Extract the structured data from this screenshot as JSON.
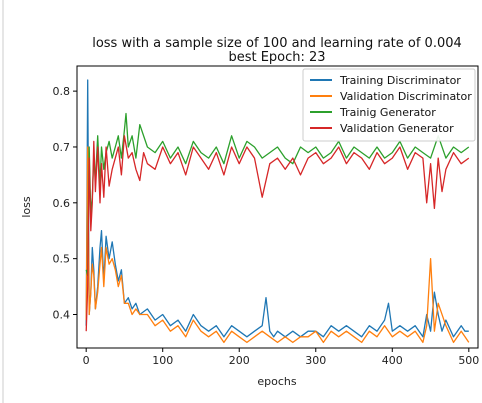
{
  "chart_data": {
    "type": "line",
    "title": "loss with a sample size of 100 and learning rate of 0.004",
    "subtitle": "best Epoch: 23",
    "xlabel": "epochs",
    "ylabel": "loss",
    "xlim": [
      -12,
      512
    ],
    "ylim": [
      0.34,
      0.845
    ],
    "xticks": [
      0,
      100,
      200,
      300,
      400,
      500
    ],
    "yticks": [
      0.4,
      0.5,
      0.6,
      0.7,
      0.8
    ],
    "legend_position": "top-right",
    "grid": false,
    "series": [
      {
        "name": "Training Discriminator",
        "color": "#1f77b4",
        "x": [
          0,
          2,
          4,
          6,
          8,
          10,
          12,
          15,
          18,
          20,
          23,
          26,
          30,
          34,
          38,
          42,
          46,
          50,
          55,
          60,
          65,
          70,
          80,
          90,
          100,
          110,
          120,
          130,
          140,
          150,
          160,
          170,
          180,
          190,
          200,
          210,
          220,
          230,
          235,
          240,
          245,
          250,
          260,
          270,
          280,
          290,
          300,
          310,
          320,
          330,
          340,
          350,
          360,
          370,
          380,
          390,
          395,
          400,
          410,
          420,
          430,
          440,
          445,
          450,
          455,
          460,
          465,
          470,
          480,
          490,
          495,
          500
        ],
        "values": [
          0.38,
          0.82,
          0.4,
          0.44,
          0.52,
          0.48,
          0.41,
          0.45,
          0.52,
          0.55,
          0.46,
          0.54,
          0.5,
          0.53,
          0.49,
          0.46,
          0.48,
          0.42,
          0.43,
          0.41,
          0.42,
          0.4,
          0.41,
          0.39,
          0.4,
          0.38,
          0.39,
          0.37,
          0.4,
          0.38,
          0.37,
          0.38,
          0.36,
          0.38,
          0.37,
          0.36,
          0.37,
          0.38,
          0.43,
          0.37,
          0.36,
          0.37,
          0.36,
          0.37,
          0.36,
          0.37,
          0.37,
          0.36,
          0.38,
          0.37,
          0.38,
          0.37,
          0.36,
          0.38,
          0.37,
          0.39,
          0.42,
          0.37,
          0.38,
          0.37,
          0.38,
          0.36,
          0.4,
          0.37,
          0.44,
          0.4,
          0.37,
          0.39,
          0.36,
          0.38,
          0.37,
          0.37
        ]
      },
      {
        "name": "Validation Discriminator",
        "color": "#ff7f0e",
        "x": [
          0,
          2,
          4,
          6,
          8,
          10,
          12,
          15,
          18,
          20,
          23,
          26,
          30,
          34,
          38,
          42,
          46,
          50,
          55,
          60,
          65,
          70,
          80,
          90,
          100,
          110,
          120,
          130,
          140,
          150,
          160,
          170,
          180,
          190,
          200,
          210,
          220,
          230,
          240,
          250,
          260,
          270,
          280,
          290,
          300,
          310,
          320,
          330,
          340,
          350,
          360,
          370,
          380,
          390,
          400,
          410,
          420,
          430,
          440,
          445,
          450,
          455,
          460,
          470,
          480,
          490,
          495,
          500
        ],
        "values": [
          0.39,
          0.7,
          0.4,
          0.44,
          0.49,
          0.47,
          0.41,
          0.44,
          0.49,
          0.52,
          0.45,
          0.52,
          0.49,
          0.5,
          0.48,
          0.45,
          0.47,
          0.42,
          0.42,
          0.4,
          0.41,
          0.4,
          0.4,
          0.38,
          0.39,
          0.37,
          0.38,
          0.36,
          0.39,
          0.37,
          0.36,
          0.37,
          0.35,
          0.37,
          0.36,
          0.35,
          0.36,
          0.37,
          0.36,
          0.35,
          0.36,
          0.35,
          0.36,
          0.36,
          0.37,
          0.35,
          0.37,
          0.36,
          0.37,
          0.36,
          0.35,
          0.37,
          0.36,
          0.38,
          0.36,
          0.37,
          0.36,
          0.37,
          0.35,
          0.38,
          0.5,
          0.37,
          0.42,
          0.38,
          0.35,
          0.37,
          0.36,
          0.35
        ]
      },
      {
        "name": "Trainig Generator",
        "color": "#2ca02c",
        "x": [
          0,
          2,
          4,
          6,
          8,
          10,
          12,
          15,
          18,
          20,
          23,
          26,
          30,
          34,
          38,
          42,
          46,
          50,
          52,
          55,
          60,
          65,
          70,
          80,
          90,
          100,
          110,
          120,
          130,
          140,
          150,
          160,
          170,
          180,
          190,
          200,
          210,
          220,
          230,
          240,
          250,
          260,
          270,
          280,
          290,
          300,
          310,
          320,
          330,
          340,
          350,
          360,
          370,
          380,
          390,
          400,
          410,
          420,
          430,
          440,
          450,
          460,
          470,
          480,
          490,
          500
        ],
        "values": [
          0.48,
          0.47,
          0.7,
          0.58,
          0.61,
          0.68,
          0.64,
          0.72,
          0.63,
          0.7,
          0.66,
          0.69,
          0.71,
          0.68,
          0.7,
          0.72,
          0.68,
          0.73,
          0.76,
          0.7,
          0.72,
          0.68,
          0.74,
          0.7,
          0.69,
          0.71,
          0.68,
          0.7,
          0.67,
          0.71,
          0.69,
          0.68,
          0.7,
          0.67,
          0.72,
          0.68,
          0.71,
          0.7,
          0.68,
          0.69,
          0.7,
          0.68,
          0.67,
          0.7,
          0.69,
          0.7,
          0.68,
          0.69,
          0.71,
          0.68,
          0.7,
          0.69,
          0.68,
          0.7,
          0.68,
          0.69,
          0.71,
          0.68,
          0.7,
          0.69,
          0.68,
          0.72,
          0.68,
          0.7,
          0.69,
          0.7
        ]
      },
      {
        "name": "Validation Generator",
        "color": "#d62728",
        "x": [
          0,
          2,
          4,
          6,
          8,
          10,
          12,
          15,
          18,
          20,
          23,
          26,
          30,
          34,
          38,
          42,
          46,
          50,
          55,
          60,
          65,
          70,
          75,
          80,
          90,
          100,
          110,
          120,
          130,
          140,
          150,
          160,
          170,
          180,
          190,
          200,
          210,
          220,
          230,
          240,
          250,
          260,
          270,
          280,
          290,
          300,
          310,
          320,
          330,
          340,
          350,
          360,
          370,
          380,
          390,
          400,
          410,
          420,
          430,
          440,
          445,
          450,
          455,
          460,
          465,
          470,
          480,
          490,
          500
        ],
        "values": [
          0.37,
          0.45,
          0.68,
          0.55,
          0.6,
          0.71,
          0.62,
          0.7,
          0.6,
          0.67,
          0.61,
          0.7,
          0.63,
          0.66,
          0.68,
          0.7,
          0.65,
          0.72,
          0.68,
          0.69,
          0.66,
          0.64,
          0.69,
          0.67,
          0.66,
          0.7,
          0.67,
          0.69,
          0.65,
          0.7,
          0.68,
          0.66,
          0.69,
          0.65,
          0.7,
          0.67,
          0.7,
          0.68,
          0.61,
          0.67,
          0.68,
          0.66,
          0.68,
          0.65,
          0.68,
          0.69,
          0.67,
          0.68,
          0.7,
          0.67,
          0.69,
          0.68,
          0.66,
          0.69,
          0.67,
          0.68,
          0.7,
          0.66,
          0.69,
          0.68,
          0.6,
          0.67,
          0.59,
          0.68,
          0.62,
          0.66,
          0.69,
          0.67,
          0.68
        ]
      }
    ]
  }
}
